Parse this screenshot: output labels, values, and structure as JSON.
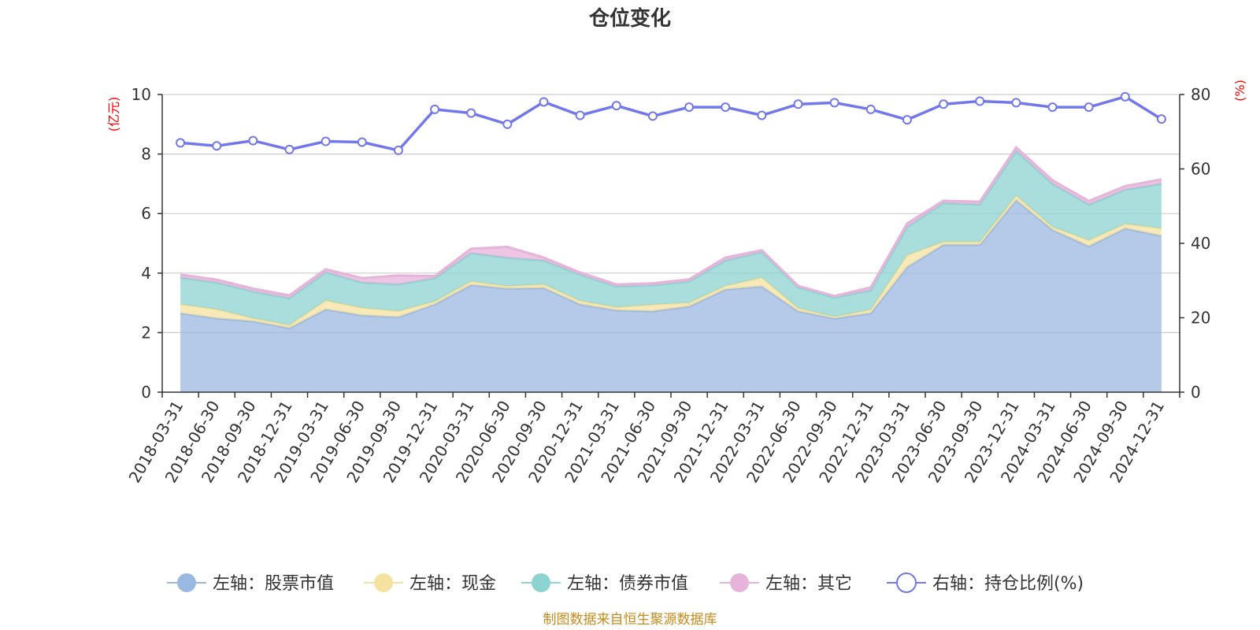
{
  "chart_data": {
    "type": "area",
    "title": "仓位变化",
    "left_axis_unit": "(亿元)",
    "right_axis_unit": "(%)",
    "left_ylim": [
      0,
      10
    ],
    "left_yticks": [
      0,
      2,
      4,
      6,
      8,
      10
    ],
    "right_ylim": [
      0,
      80
    ],
    "right_yticks": [
      0,
      20,
      40,
      60,
      80
    ],
    "grid": true,
    "legend_position": "bottom",
    "categories": [
      "2018-03-31",
      "2018-06-30",
      "2018-09-30",
      "2018-12-31",
      "2019-03-31",
      "2019-06-30",
      "2019-09-30",
      "2019-12-31",
      "2020-03-31",
      "2020-06-30",
      "2020-09-30",
      "2020-12-31",
      "2021-03-31",
      "2021-06-30",
      "2021-09-30",
      "2021-12-31",
      "2022-03-31",
      "2022-06-30",
      "2022-09-30",
      "2022-12-31",
      "2023-03-31",
      "2023-06-30",
      "2023-09-30",
      "2023-12-31",
      "2024-03-31",
      "2024-06-30",
      "2024-09-30",
      "2024-12-31"
    ],
    "series": [
      {
        "name": "左轴：股票市值",
        "axis": "left",
        "kind": "stacked-area",
        "color": "#9bb8e0",
        "values": [
          2.65,
          2.48,
          2.38,
          2.15,
          2.78,
          2.58,
          2.52,
          2.95,
          3.6,
          3.48,
          3.5,
          2.95,
          2.75,
          2.72,
          2.88,
          3.45,
          3.55,
          2.72,
          2.48,
          2.65,
          4.2,
          4.95,
          4.95,
          6.45,
          5.45,
          4.9,
          5.5,
          5.25
        ]
      },
      {
        "name": "左轴：现金",
        "axis": "left",
        "kind": "stacked-area",
        "color": "#f5e2a0",
        "values": [
          0.3,
          0.3,
          0.1,
          0.1,
          0.3,
          0.25,
          0.2,
          0.1,
          0.12,
          0.08,
          0.12,
          0.12,
          0.1,
          0.22,
          0.12,
          0.12,
          0.3,
          0.1,
          0.05,
          0.12,
          0.4,
          0.1,
          0.1,
          0.15,
          0.1,
          0.2,
          0.15,
          0.25
        ]
      },
      {
        "name": "左轴：债券市值",
        "axis": "left",
        "kind": "stacked-area",
        "color": "#8dd3d1",
        "values": [
          0.9,
          0.9,
          0.9,
          0.9,
          0.95,
          0.85,
          0.9,
          0.78,
          0.95,
          0.95,
          0.8,
          0.88,
          0.7,
          0.65,
          0.72,
          0.85,
          0.85,
          0.7,
          0.65,
          0.65,
          0.95,
          1.3,
          1.25,
          1.5,
          1.45,
          1.2,
          1.15,
          1.5
        ]
      },
      {
        "name": "左轴：其它",
        "axis": "left",
        "kind": "stacked-area",
        "color": "#e6b3da",
        "values": [
          0.1,
          0.1,
          0.1,
          0.1,
          0.1,
          0.15,
          0.3,
          0.07,
          0.15,
          0.37,
          0.1,
          0.07,
          0.07,
          0.07,
          0.07,
          0.1,
          0.07,
          0.05,
          0.05,
          0.1,
          0.12,
          0.08,
          0.1,
          0.12,
          0.12,
          0.12,
          0.12,
          0.15
        ]
      },
      {
        "name": "右轴：持仓比例(%)",
        "axis": "right",
        "kind": "line",
        "color": "#7277ec",
        "values": [
          67,
          66.2,
          67.6,
          65.2,
          67.4,
          67.2,
          65,
          76,
          75,
          72,
          78,
          74.4,
          77,
          74.2,
          76.6,
          76.6,
          74.4,
          77.4,
          77.8,
          76,
          73.2,
          77.4,
          78.2,
          77.8,
          76.6,
          76.6,
          79.4,
          73.4
        ]
      }
    ],
    "legend": [
      "左轴：股票市值",
      "左轴：现金",
      "左轴：债券市值",
      "左轴：其它",
      "右轴：持仓比例(%)"
    ]
  },
  "source_note": "制图数据来自恒生聚源数据库"
}
